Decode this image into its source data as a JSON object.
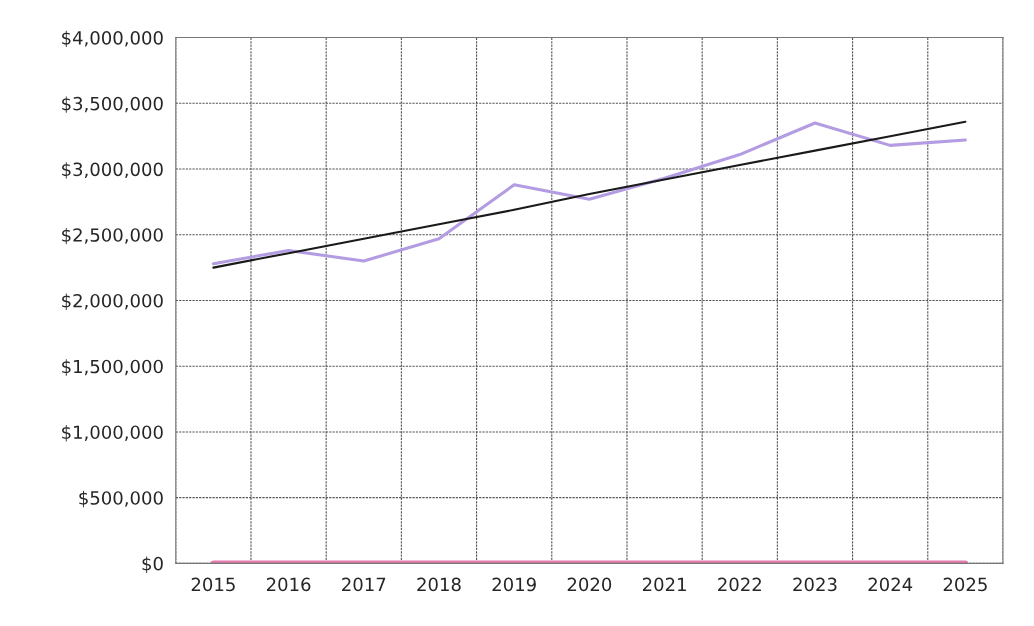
{
  "chart_data": {
    "type": "line",
    "categories": [
      "2015",
      "2016",
      "2017",
      "2018",
      "2019",
      "2020",
      "2021",
      "2022",
      "2023",
      "2024",
      "2025"
    ],
    "series": [
      {
        "color": "#b39ce2",
        "values": [
          2280000,
          2380000,
          2300000,
          2470000,
          2880000,
          2770000,
          2930000,
          3110000,
          3350000,
          3180000,
          3220000
        ]
      },
      {
        "color": "#e57aae",
        "values": [
          0,
          0,
          0,
          0,
          0,
          0,
          0,
          0,
          0,
          0,
          0
        ]
      },
      {
        "color": "#1a1a1a",
        "values": [
          2250000,
          2360000,
          2470000,
          2580000,
          2690000,
          2810000,
          2920000,
          3030000,
          3140000,
          3250000,
          3360000
        ]
      }
    ],
    "ylim": [
      0,
      4000000
    ],
    "yticks": [
      {
        "value": 0,
        "label": "$0"
      },
      {
        "value": 500000,
        "label": "$500,000"
      },
      {
        "value": 1000000,
        "label": "$1,000,000"
      },
      {
        "value": 1500000,
        "label": "$1,500,000"
      },
      {
        "value": 2000000,
        "label": "$2,000,000"
      },
      {
        "value": 2500000,
        "label": "$2,500,000"
      },
      {
        "value": 3000000,
        "label": "$3,000,000"
      },
      {
        "value": 3500000,
        "label": "$3,500,000"
      },
      {
        "value": 4000000,
        "label": "$4,000,000"
      }
    ],
    "grid": true,
    "legend": false
  }
}
